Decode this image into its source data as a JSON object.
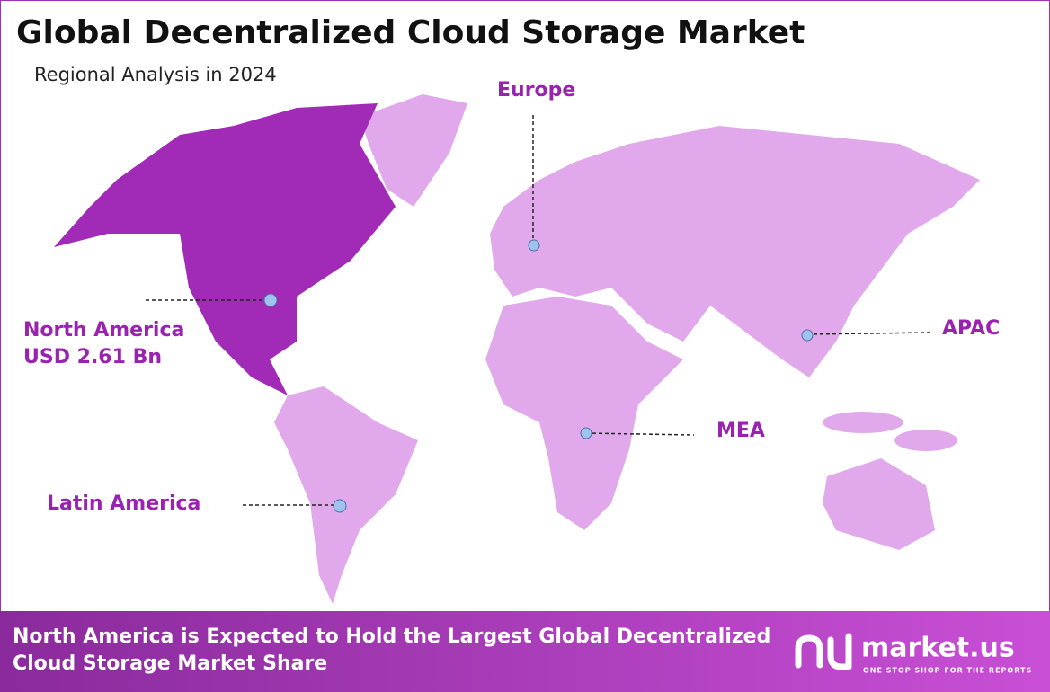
{
  "header": {
    "title": "Global Decentralized Cloud Storage Market",
    "subtitle": "Regional Analysis in 2024"
  },
  "regions": [
    {
      "label": "North America",
      "value": "USD 2.61 Bn"
    },
    {
      "label": "Europe"
    },
    {
      "label": "APAC"
    },
    {
      "label": "MEA"
    },
    {
      "label": "Latin America"
    }
  ],
  "footer": {
    "text_line1": "North America is Expected to Hold the Largest Global Decentralized",
    "text_line2": "Cloud Storage Market Share",
    "brand": "market.us",
    "tagline": "ONE STOP SHOP FOR THE REPORTS"
  }
}
